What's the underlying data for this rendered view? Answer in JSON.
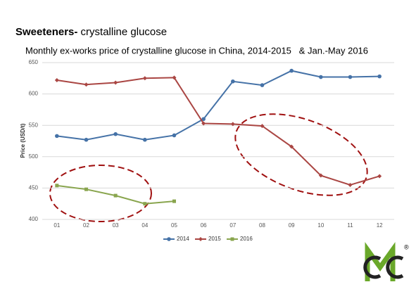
{
  "chart_data": {
    "type": "line",
    "title_bold": "Sweeteners-",
    "title_rest": "crystalline glucose",
    "subtitle": "Monthly ex-works price of crystalline glucose in China, 2014-2015   & Jan.-May 2016",
    "ylabel": "Price (USD/t)",
    "categories": [
      "01",
      "02",
      "03",
      "04",
      "05",
      "06",
      "07",
      "08",
      "09",
      "10",
      "11",
      "12"
    ],
    "series": [
      {
        "name": "2014",
        "color": "#4572a7",
        "marker": "circle",
        "values": [
          533,
          527,
          536,
          527,
          534,
          560,
          620,
          614,
          637,
          627,
          627,
          628
        ]
      },
      {
        "name": "2015",
        "color": "#aa4643",
        "marker": "diamond",
        "values": [
          622,
          615,
          618,
          625,
          626,
          553,
          552,
          549,
          516,
          470,
          455,
          469
        ]
      },
      {
        "name": "2016",
        "color": "#89a54e",
        "marker": "square",
        "values": [
          454,
          448,
          438,
          425,
          429,
          null,
          null,
          null,
          null,
          null,
          null,
          null
        ]
      }
    ],
    "ylim": [
      400,
      650
    ],
    "yticks": [
      400,
      450,
      500,
      550,
      600,
      650
    ],
    "grid": true,
    "legend": "bottom",
    "logo": "®"
  }
}
